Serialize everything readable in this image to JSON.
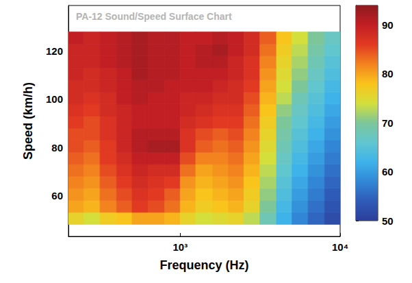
{
  "chart_data": {
    "type": "heatmap",
    "title": "PA-12 Sound/Speed Surface Chart",
    "x_label": "Frequency (Hz)",
    "y_label": "Speed (km/h)",
    "log": "x",
    "grid": false,
    "xlim": [
      200,
      10000
    ],
    "xticks": [
      {
        "value": 1000,
        "label": "10³"
      },
      {
        "value": 10000,
        "label": "10⁴"
      }
    ],
    "ylim": [
      43,
      139
    ],
    "yticks": [
      60,
      80,
      100,
      120
    ],
    "cells": {
      "x_edges": [
        200,
        250,
        315,
        400,
        500,
        630,
        800,
        1000,
        1250,
        1600,
        2000,
        2500,
        3150,
        4000,
        5000,
        6300,
        8000,
        10000
      ],
      "y_edges": [
        48,
        53,
        58,
        63,
        68,
        73,
        78,
        83,
        88,
        93,
        98,
        103,
        108,
        113,
        118,
        123,
        128
      ],
      "values": [
        [
          76,
          74,
          77,
          78,
          80,
          80,
          79,
          76,
          74,
          75,
          76,
          73,
          68,
          62,
          58,
          55,
          52
        ],
        [
          80,
          79,
          82,
          84,
          86,
          85,
          83,
          79,
          77,
          78,
          79,
          76,
          70,
          63,
          59,
          56,
          53
        ],
        [
          81,
          80,
          83,
          85,
          87,
          86,
          84,
          80,
          78,
          79,
          80,
          77,
          71,
          64,
          60,
          57,
          54
        ],
        [
          82,
          81,
          84,
          86,
          88,
          87,
          86,
          81,
          79,
          80,
          81,
          78,
          72,
          65,
          61,
          58,
          55
        ],
        [
          83,
          82,
          85,
          87,
          89,
          88,
          88,
          83,
          80,
          81,
          82,
          79,
          73,
          66,
          62,
          59,
          56
        ],
        [
          84,
          83,
          86,
          88,
          90,
          90,
          90,
          85,
          82,
          82,
          83,
          80,
          74,
          67,
          63,
          60,
          57
        ],
        [
          85,
          84,
          86,
          89,
          91,
          92,
          92,
          87,
          84,
          83,
          84,
          81,
          75,
          68,
          64,
          61,
          58
        ],
        [
          85,
          85,
          87,
          89,
          91,
          91,
          91,
          87,
          85,
          84,
          85,
          82,
          76,
          69,
          65,
          62,
          59
        ],
        [
          86,
          85,
          87,
          89,
          90,
          90,
          90,
          88,
          87,
          86,
          86,
          83,
          77,
          70,
          66,
          63,
          60
        ],
        [
          87,
          86,
          88,
          89,
          90,
          90,
          90,
          89,
          88,
          87,
          87,
          84,
          78,
          71,
          67,
          64,
          61
        ],
        [
          88,
          87,
          88,
          90,
          91,
          90,
          90,
          89,
          89,
          88,
          88,
          85,
          79,
          73,
          68,
          65,
          62
        ],
        [
          88,
          88,
          89,
          90,
          91,
          91,
          90,
          90,
          90,
          89,
          88,
          86,
          80,
          74,
          70,
          66,
          63
        ],
        [
          89,
          88,
          89,
          90,
          92,
          91,
          91,
          90,
          90,
          90,
          89,
          87,
          81,
          75,
          71,
          67,
          64
        ],
        [
          89,
          89,
          90,
          91,
          92,
          91,
          91,
          90,
          91,
          91,
          89,
          87,
          82,
          76,
          72,
          68,
          65
        ],
        [
          89,
          89,
          90,
          91,
          92,
          91,
          91,
          90,
          91,
          92,
          90,
          88,
          83,
          77,
          73,
          69,
          66
        ],
        [
          90,
          89,
          90,
          91,
          92,
          91,
          91,
          90,
          90,
          91,
          90,
          88,
          84,
          78,
          74,
          70,
          67
        ]
      ]
    },
    "colorbar": {
      "range": [
        50,
        94
      ],
      "ticks": [
        50,
        60,
        70,
        80,
        90
      ]
    }
  }
}
